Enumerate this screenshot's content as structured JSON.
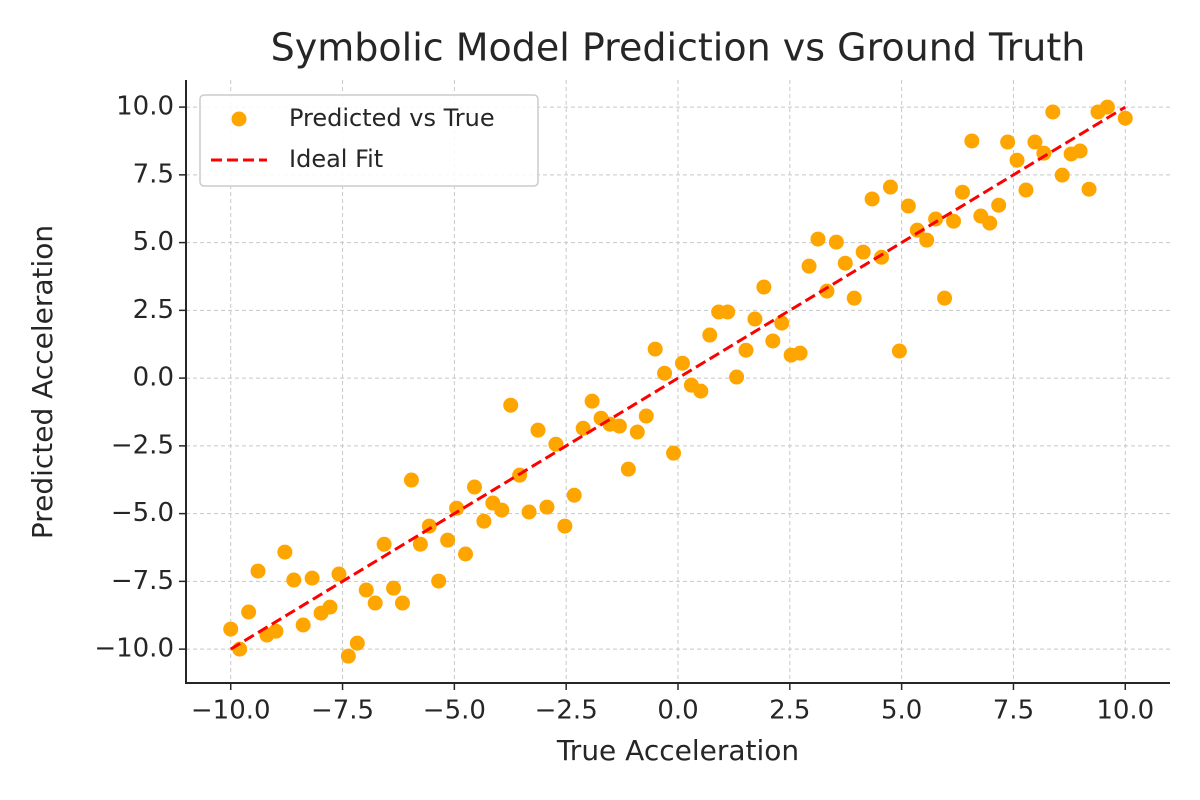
{
  "chart_data": {
    "type": "scatter",
    "title": "Symbolic Model Prediction vs Ground Truth",
    "x_label": "True Acceleration",
    "y_label": "Predicted Acceleration",
    "xlim": [
      -11.0,
      11.0
    ],
    "ylim": [
      -11.25,
      11.0
    ],
    "xticks": [
      {
        "value": -10,
        "label": "−10.0"
      },
      {
        "value": -7.5,
        "label": "−7.5"
      },
      {
        "value": -5,
        "label": "−5.0"
      },
      {
        "value": -2.5,
        "label": "−2.5"
      },
      {
        "value": 0,
        "label": "0.0"
      },
      {
        "value": 2.5,
        "label": "2.5"
      },
      {
        "value": 5,
        "label": "5.0"
      },
      {
        "value": 7.5,
        "label": "7.5"
      },
      {
        "value": 10,
        "label": "10.0"
      }
    ],
    "yticks": [
      {
        "value": -10,
        "label": "−10.0"
      },
      {
        "value": -7.5,
        "label": "−7.5"
      },
      {
        "value": -5,
        "label": "−5.0"
      },
      {
        "value": -2.5,
        "label": "−2.5"
      },
      {
        "value": 0,
        "label": "0.0"
      },
      {
        "value": 2.5,
        "label": "2.5"
      },
      {
        "value": 5,
        "label": "5.0"
      },
      {
        "value": 7.5,
        "label": "7.5"
      },
      {
        "value": 10,
        "label": "10.0"
      }
    ],
    "grid": true,
    "legend": "upper left",
    "series": [
      {
        "name": "Predicted vs True",
        "color": "#ffa500",
        "marker": "o",
        "x": [
          -10.0,
          -9.8,
          -9.6,
          -9.39,
          -9.19,
          -8.99,
          -8.79,
          -8.59,
          -8.38,
          -8.18,
          -7.98,
          -7.78,
          -7.58,
          -7.37,
          -7.17,
          -6.97,
          -6.77,
          -6.57,
          -6.36,
          -6.16,
          -5.96,
          -5.76,
          -5.56,
          -5.35,
          -5.15,
          -4.95,
          -4.75,
          -4.55,
          -4.34,
          -4.14,
          -3.94,
          -3.74,
          -3.54,
          -3.33,
          -3.13,
          -2.93,
          -2.73,
          -2.53,
          -2.32,
          -2.12,
          -1.92,
          -1.72,
          -1.52,
          -1.31,
          -1.11,
          -0.91,
          -0.71,
          -0.51,
          -0.3,
          -0.1,
          0.1,
          0.3,
          0.51,
          0.71,
          0.91,
          1.11,
          1.31,
          1.52,
          1.72,
          1.92,
          2.12,
          2.32,
          2.53,
          2.73,
          2.93,
          3.13,
          3.33,
          3.54,
          3.74,
          3.94,
          4.14,
          4.34,
          4.55,
          4.75,
          4.95,
          5.15,
          5.35,
          5.56,
          5.76,
          5.96,
          6.16,
          6.36,
          6.57,
          6.77,
          6.97,
          7.17,
          7.37,
          7.58,
          7.78,
          7.98,
          8.18,
          8.38,
          8.59,
          8.79,
          8.99,
          9.19,
          9.39,
          9.6,
          10.0
        ],
        "values": [
          -9.26,
          -10.0,
          -8.63,
          -7.12,
          -9.48,
          -9.34,
          -6.42,
          -7.45,
          -9.11,
          -7.38,
          -8.67,
          -8.45,
          -7.23,
          -10.26,
          -9.78,
          -7.82,
          -8.3,
          -6.13,
          -7.75,
          -8.3,
          -3.76,
          -6.13,
          -5.46,
          -7.49,
          -5.98,
          -4.8,
          -6.49,
          -4.02,
          -5.28,
          -4.61,
          -4.87,
          -1.0,
          -3.58,
          -4.94,
          -1.92,
          -4.76,
          -2.44,
          -5.46,
          -4.32,
          -1.85,
          -0.85,
          -1.48,
          -1.7,
          -1.77,
          -3.36,
          -1.99,
          -1.4,
          1.07,
          0.18,
          -2.77,
          0.55,
          -0.26,
          -0.48,
          1.59,
          2.44,
          2.44,
          0.04,
          1.03,
          2.18,
          3.36,
          1.37,
          2.03,
          0.85,
          0.92,
          4.13,
          5.13,
          3.21,
          5.02,
          4.24,
          2.95,
          4.65,
          6.61,
          4.46,
          7.05,
          1.0,
          6.35,
          5.46,
          5.09,
          5.87,
          2.95,
          5.79,
          6.86,
          8.75,
          5.98,
          5.72,
          6.38,
          8.71,
          8.04,
          6.94,
          8.71,
          8.3,
          9.82,
          7.49,
          8.27,
          8.38,
          6.97,
          9.82,
          10.0,
          9.59
        ]
      },
      {
        "name": "Ideal Fit",
        "color": "#ff0000",
        "linestyle": "--",
        "x": [
          -10,
          10
        ],
        "values": [
          -10,
          10
        ]
      }
    ]
  }
}
